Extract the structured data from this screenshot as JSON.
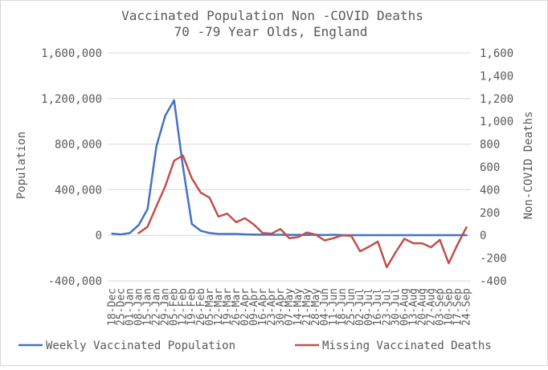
{
  "chart_data": {
    "type": "line",
    "title_line1": "Vaccinated Population Non -COVID Deaths",
    "title_line2": "70 -79 Year Olds, England",
    "ylabel_left": "Population",
    "ylabel_right": "Non-COVID Deaths",
    "left_axis": {
      "min": -400000,
      "max": 1600000,
      "ticks": [
        -400000,
        0,
        400000,
        800000,
        1200000,
        1600000
      ],
      "tick_labels": [
        "-400,000",
        "0",
        "400,000",
        "800,000",
        "1,200,000",
        "1,600,000"
      ]
    },
    "right_axis": {
      "min": -400,
      "max": 1600,
      "ticks": [
        -400,
        -200,
        0,
        200,
        400,
        600,
        800,
        1000,
        1200,
        1400,
        1600
      ],
      "tick_labels": [
        "-400",
        "-200",
        "0",
        "200",
        "400",
        "600",
        "800",
        "1,000",
        "1,200",
        "1,400",
        "1,600"
      ]
    },
    "categories": [
      "18-Dec",
      "25-Dec",
      "01-Jan",
      "08-Jan",
      "15-Jan",
      "22-Jan",
      "29-Jan",
      "05-Feb",
      "12-Feb",
      "19-Feb",
      "26-Feb",
      "05-Mar",
      "12-Mar",
      "19-Mar",
      "26-Mar",
      "02-Apr",
      "09-Apr",
      "16-Apr",
      "23-Apr",
      "30-Apr",
      "07-May",
      "14-May",
      "21-May",
      "28-May",
      "04-Jun",
      "11-Jun",
      "18-Jun",
      "25-Jun",
      "02-Jul",
      "09-Jul",
      "16-Jul",
      "23-Jul",
      "30-Jul",
      "06-Aug",
      "13-Aug",
      "20-Aug",
      "27-Aug",
      "03-Sep",
      "10-Sep",
      "17-Sep",
      "24-Sep"
    ],
    "series": [
      {
        "name": "Weekly Vaccinated Population",
        "color": "#4472c4",
        "axis": "left",
        "values": [
          15000,
          8000,
          20000,
          90000,
          230000,
          780000,
          1050000,
          1185000,
          600000,
          100000,
          40000,
          20000,
          12000,
          12000,
          12000,
          8000,
          7000,
          6000,
          5000,
          5000,
          4000,
          4000,
          3000,
          5000,
          2000,
          5000,
          2000,
          1000,
          1000,
          1000,
          1000,
          1000,
          1000,
          1000,
          1000,
          1000,
          1000,
          1000,
          1000,
          1000,
          1000
        ]
      },
      {
        "name": "Missing Vaccinated Deaths",
        "color": "#c0504d",
        "axis": "right",
        "values": [
          null,
          null,
          null,
          20,
          75,
          255,
          430,
          655,
          700,
          500,
          375,
          330,
          165,
          190,
          115,
          150,
          95,
          20,
          15,
          55,
          -25,
          -15,
          25,
          5,
          -45,
          -25,
          0,
          -5,
          -140,
          -100,
          -55,
          -280,
          -150,
          -30,
          -70,
          -70,
          -105,
          -40,
          -245,
          -80,
          70
        ]
      }
    ],
    "grid": "horizontal",
    "legend_position": "bottom"
  }
}
